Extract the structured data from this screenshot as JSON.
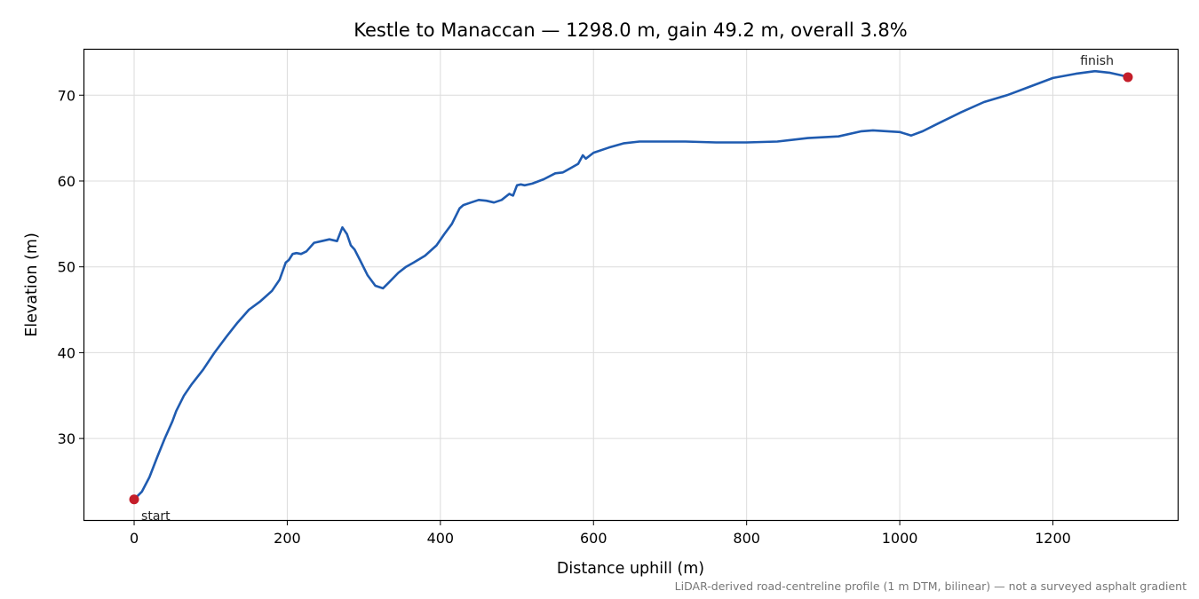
{
  "chart_data": {
    "type": "line",
    "title": "Kestle to Manaccan — 1298.0 m, gain 49.2 m, overall 3.8%",
    "xlabel": "Distance uphill (m)",
    "ylabel": "Elevation (m)",
    "xlim": [
      -65,
      1363
    ],
    "ylim": [
      20.5,
      75.3
    ],
    "xticks": [
      0,
      200,
      400,
      600,
      800,
      1000,
      1200
    ],
    "yticks": [
      30,
      40,
      50,
      60,
      70
    ],
    "grid": true,
    "line_color": "#1f5bb0",
    "marker_color": "#c41e2a",
    "series": [
      {
        "x": [
          0,
          10,
          20,
          30,
          40,
          50,
          55,
          65,
          75,
          90,
          105,
          120,
          135,
          150,
          165,
          180,
          190,
          198,
          202,
          207,
          212,
          218,
          225,
          235,
          245,
          255,
          265,
          272,
          278,
          283,
          288,
          295,
          305,
          315,
          325,
          333,
          345,
          355,
          365,
          380,
          395,
          405,
          415,
          425,
          430,
          440,
          450,
          460,
          470,
          480,
          490,
          495,
          500,
          505,
          510,
          520,
          535,
          550,
          560,
          570,
          580,
          586,
          590,
          600,
          620,
          640,
          660,
          690,
          720,
          760,
          800,
          840,
          880,
          920,
          950,
          965,
          1000,
          1015,
          1030,
          1050,
          1080,
          1110,
          1140,
          1170,
          1200,
          1230,
          1255,
          1275,
          1290,
          1298
        ],
        "y": [
          22.9,
          23.8,
          25.5,
          27.8,
          30.0,
          32.0,
          33.2,
          35.0,
          36.3,
          38.0,
          40.0,
          41.8,
          43.5,
          45.0,
          46.0,
          47.2,
          48.5,
          50.5,
          50.8,
          51.5,
          51.6,
          51.5,
          51.8,
          52.8,
          53.0,
          53.2,
          53.0,
          54.6,
          53.8,
          52.5,
          52.0,
          50.8,
          49.0,
          47.8,
          47.5,
          48.2,
          49.3,
          50.0,
          50.5,
          51.3,
          52.5,
          53.8,
          55.0,
          56.8,
          57.2,
          57.5,
          57.8,
          57.7,
          57.5,
          57.8,
          58.5,
          58.3,
          59.5,
          59.6,
          59.5,
          59.7,
          60.2,
          60.9,
          61.0,
          61.5,
          62.0,
          63.0,
          62.6,
          63.3,
          63.9,
          64.4,
          64.6,
          64.6,
          64.6,
          64.5,
          64.5,
          64.6,
          65.0,
          65.2,
          65.8,
          65.9,
          65.7,
          65.3,
          65.8,
          66.7,
          68.0,
          69.2,
          70.0,
          71.0,
          72.0,
          72.5,
          72.8,
          72.6,
          72.3,
          72.1
        ]
      }
    ],
    "annotations": [
      {
        "text": "start",
        "x": 0,
        "y": 22.9
      },
      {
        "text": "finish",
        "x": 1298,
        "y": 72.1
      }
    ]
  },
  "footnote": "LiDAR-derived road-centreline profile (1 m DTM, bilinear) — not a surveyed asphalt gradient"
}
